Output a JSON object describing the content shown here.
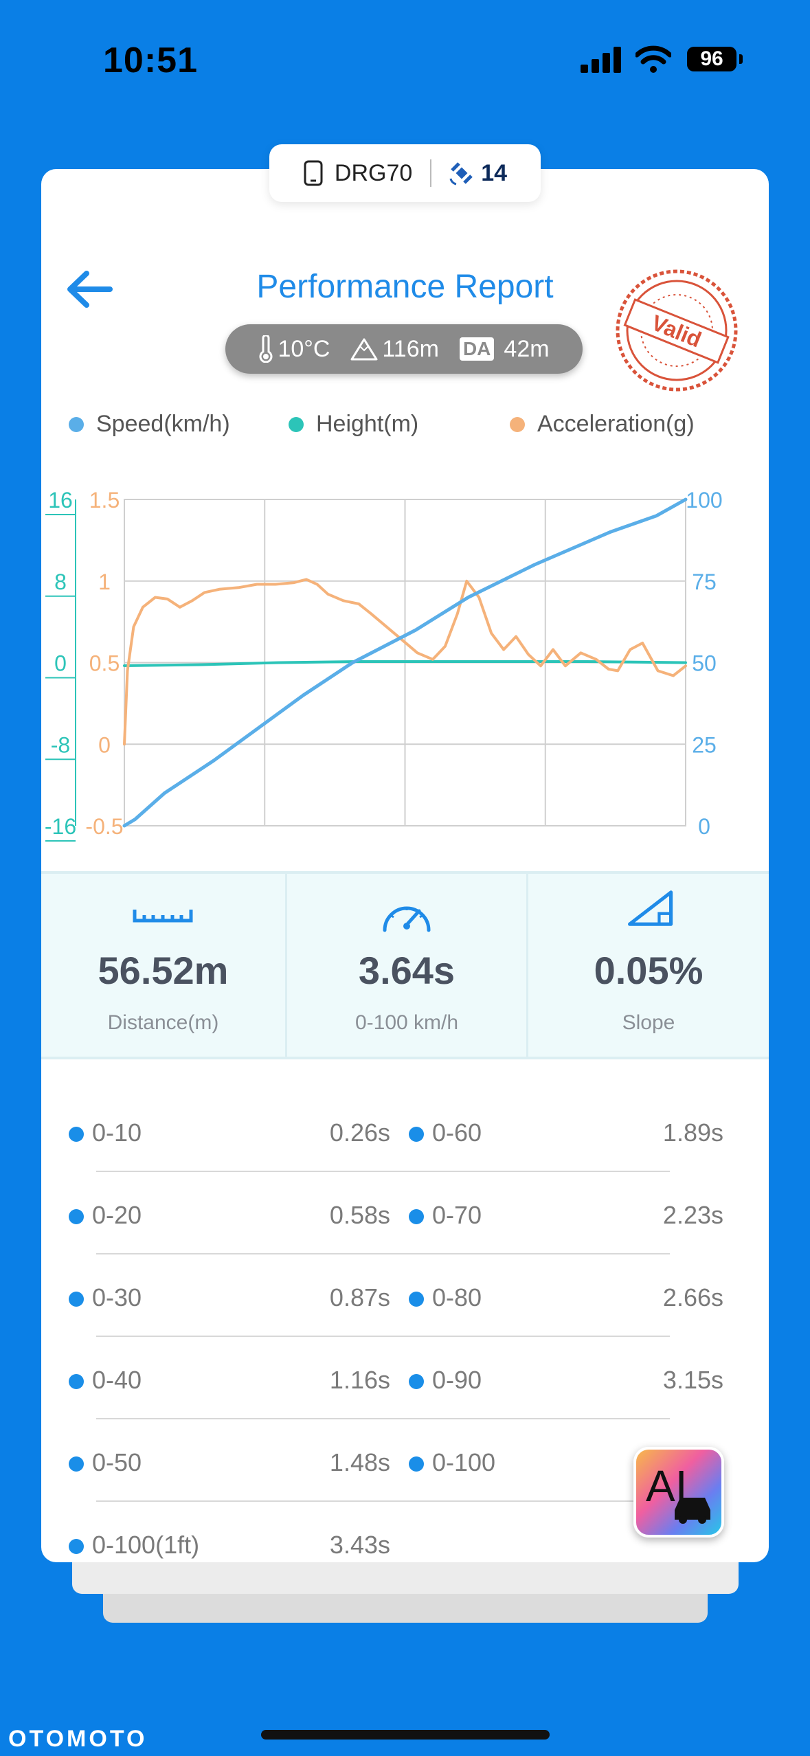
{
  "status_bar": {
    "time": "10:51",
    "battery": "96"
  },
  "device": {
    "name": "DRG70",
    "satellites": "14"
  },
  "header": {
    "title": "Performance Report",
    "stamp_text": "Valid"
  },
  "conditions": {
    "temperature": "10°C",
    "altitude": "116m",
    "da_label": "DA",
    "density_altitude": "42m"
  },
  "legend": [
    {
      "label": "Speed(km/h)",
      "color": "#5aaee8"
    },
    {
      "label": "Height(m)",
      "color": "#2cc4b8"
    },
    {
      "label": "Acceleration(g)",
      "color": "#f5b27a"
    }
  ],
  "chart_data": {
    "type": "line",
    "x_range": [
      0,
      3.64
    ],
    "y_axes": {
      "height": {
        "ticks": [
          "16",
          "8",
          "0",
          "-8",
          "-16"
        ],
        "range": [
          -16,
          16
        ],
        "color": "#2cc4b8"
      },
      "acceleration": {
        "ticks": [
          "1.5",
          "1",
          "0.5",
          "0",
          "-0.5"
        ],
        "range": [
          -0.5,
          1.5
        ],
        "color": "#f5b27a"
      },
      "speed": {
        "ticks": [
          "100",
          "75",
          "50",
          "25",
          "0"
        ],
        "range": [
          0,
          100
        ],
        "color": "#5aaee8"
      }
    },
    "grid": true,
    "series": [
      {
        "name": "Speed(km/h)",
        "axis": "speed",
        "color": "#5aaee8",
        "x": [
          0,
          0.07,
          0.26,
          0.58,
          0.87,
          1.16,
          1.48,
          1.89,
          2.23,
          2.66,
          3.15,
          3.45,
          3.64
        ],
        "y": [
          0,
          2,
          10,
          20,
          30,
          40,
          50,
          60,
          70,
          80,
          90,
          95,
          100
        ]
      },
      {
        "name": "Height(m)",
        "axis": "height",
        "color": "#2cc4b8",
        "x": [
          0,
          0.5,
          1.0,
          1.5,
          2.0,
          2.5,
          3.0,
          3.64
        ],
        "y": [
          -0.3,
          -0.2,
          0,
          0.1,
          0.1,
          0.1,
          0.1,
          0
        ]
      },
      {
        "name": "Acceleration(g)",
        "axis": "acceleration",
        "color": "#f5b27a",
        "x": [
          0,
          0.02,
          0.06,
          0.12,
          0.2,
          0.28,
          0.36,
          0.44,
          0.52,
          0.62,
          0.74,
          0.86,
          0.98,
          1.1,
          1.18,
          1.25,
          1.32,
          1.42,
          1.52,
          1.6,
          1.7,
          1.8,
          1.9,
          2.0,
          2.08,
          2.16,
          2.22,
          2.3,
          2.38,
          2.46,
          2.54,
          2.62,
          2.7,
          2.78,
          2.86,
          2.96,
          3.06,
          3.14,
          3.2,
          3.28,
          3.36,
          3.46,
          3.56,
          3.64
        ],
        "y": [
          0.0,
          0.45,
          0.72,
          0.84,
          0.9,
          0.89,
          0.84,
          0.88,
          0.93,
          0.95,
          0.96,
          0.98,
          0.98,
          0.99,
          1.01,
          0.98,
          0.92,
          0.88,
          0.86,
          0.8,
          0.72,
          0.64,
          0.56,
          0.52,
          0.6,
          0.8,
          1.0,
          0.9,
          0.68,
          0.58,
          0.66,
          0.55,
          0.48,
          0.58,
          0.48,
          0.56,
          0.52,
          0.46,
          0.45,
          0.58,
          0.62,
          0.45,
          0.42,
          0.48
        ]
      }
    ]
  },
  "stats": [
    {
      "value": "56.52m",
      "label": "Distance(m)",
      "icon": "ruler-icon"
    },
    {
      "value": "3.64s",
      "label": "0-100 km/h",
      "icon": "speedometer-icon"
    },
    {
      "value": "0.05%",
      "label": "Slope",
      "icon": "slope-icon"
    }
  ],
  "splits_left": [
    {
      "name": "0-10",
      "time": "0.26s"
    },
    {
      "name": "0-20",
      "time": "0.58s"
    },
    {
      "name": "0-30",
      "time": "0.87s"
    },
    {
      "name": "0-40",
      "time": "1.16s"
    },
    {
      "name": "0-50",
      "time": "1.48s"
    },
    {
      "name": "0-100(1ft)",
      "time": "3.43s"
    }
  ],
  "splits_right": [
    {
      "name": "0-60",
      "time": "1.89s"
    },
    {
      "name": "0-70",
      "time": "2.23s"
    },
    {
      "name": "0-80",
      "time": "2.66s"
    },
    {
      "name": "0-90",
      "time": "3.15s"
    },
    {
      "name": "0-100",
      "time": ""
    }
  ],
  "ai_button": {
    "label": "AI"
  },
  "watermark": "OTOMOTO"
}
